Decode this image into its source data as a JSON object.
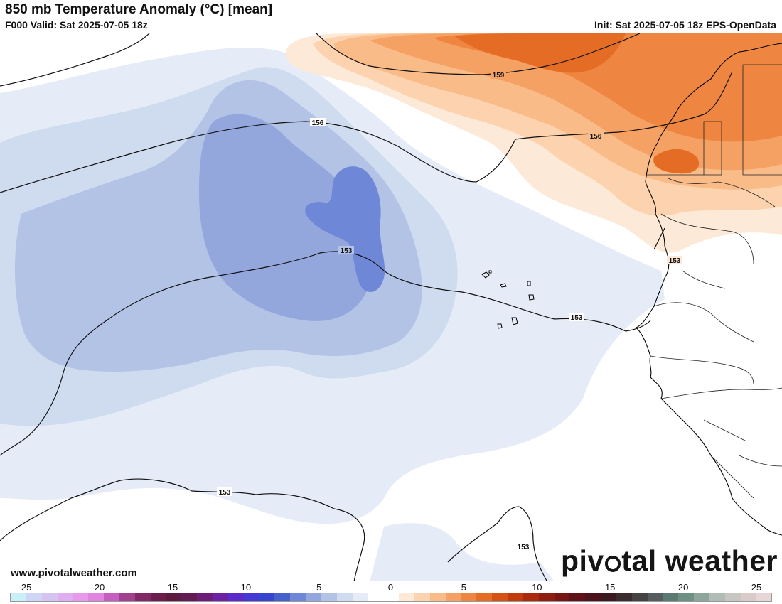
{
  "header": {
    "title": "850 mb Temperature Anomaly (°C) [mean]",
    "valid": "F000 Valid: Sat 2025-07-05 18z",
    "init": "Init: Sat 2025-07-05 18z EPS-OpenData"
  },
  "contours": {
    "label_159": "159",
    "label_156_a": "156",
    "label_156_b": "156",
    "label_153_a": "153",
    "label_153_b": "153",
    "label_153_c": "153",
    "label_153_d": "153",
    "label_153_e": "153"
  },
  "footer": {
    "website": "www.pivotalweather.com",
    "brand_pre": "piv",
    "brand_post": "tal weather"
  },
  "legend": {
    "ticks": [
      "-25",
      "-20",
      "-15",
      "-10",
      "-5",
      "0",
      "5",
      "10",
      "15",
      "20",
      "25"
    ],
    "colors": [
      "#c9f0f7",
      "#cfd6f5",
      "#d5c4f1",
      "#dfaef0",
      "#e79aec",
      "#e383e0",
      "#c75dbf",
      "#a0408f",
      "#822866",
      "#6b1d4b",
      "#5c1b3f",
      "#631a55",
      "#6c1d78",
      "#6c21a6",
      "#5b2bc9",
      "#4638d6",
      "#3744d0",
      "#4660cc",
      "#6e87d6",
      "#93a7dd",
      "#b3c3e6",
      "#cfdbef",
      "#e6ecf7",
      "#ffffff",
      "#ffffff",
      "#fde9d7",
      "#fcd3ae",
      "#f9bb88",
      "#f5a163",
      "#ee8641",
      "#e46c25",
      "#d55212",
      "#c23c0b",
      "#a92a0c",
      "#8f1d10",
      "#771614",
      "#5f1318",
      "#4d131c",
      "#3c1a22",
      "#3a2c2f",
      "#444444",
      "#555d5f",
      "#5c7a72",
      "#6f9084",
      "#8ea59c",
      "#b0bcb6",
      "#c8c6c3",
      "#d9cbc9",
      "#e6d6d6"
    ]
  }
}
